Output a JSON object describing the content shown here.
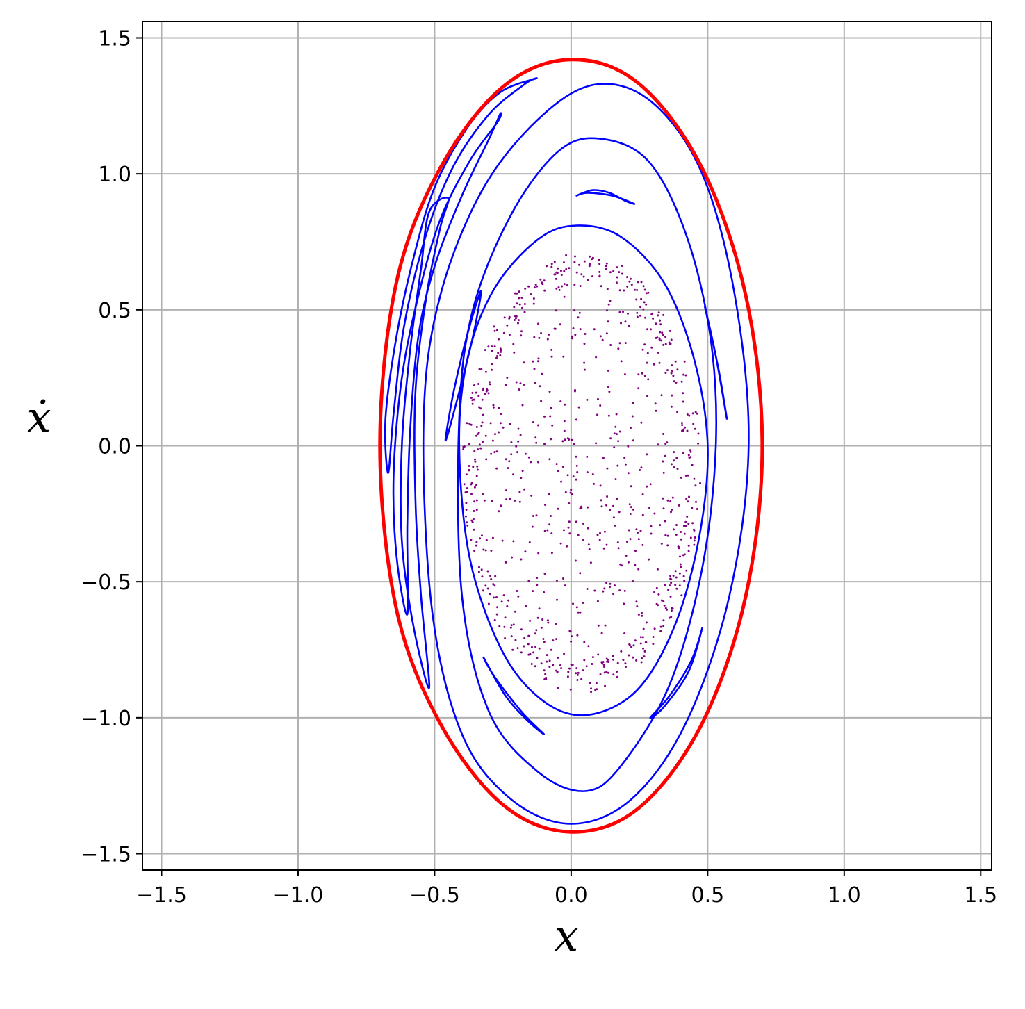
{
  "chart_data": {
    "type": "scatter",
    "title": "",
    "xlabel": "x",
    "ylabel": "ẋ",
    "xlim": [
      -1.57,
      1.54
    ],
    "ylim": [
      -1.56,
      1.56
    ],
    "xticks": [
      -1.5,
      -1.0,
      -0.5,
      0.0,
      0.5,
      1.0,
      1.5
    ],
    "xtick_labels": [
      "−1.5",
      "−1.0",
      "−0.5",
      "0.0",
      "0.5",
      "1.0",
      "1.5"
    ],
    "yticks": [
      -1.5,
      -1.0,
      -0.5,
      0.0,
      0.5,
      1.0,
      1.5
    ],
    "ytick_labels": [
      "−1.5",
      "−1.0",
      "−0.5",
      "0.0",
      "0.5",
      "1.0",
      "1.5"
    ],
    "grid": true,
    "legend": "none",
    "colors": {
      "boundary": "#ff0000",
      "orbits": "#0000ff",
      "chaotic": "#800080",
      "grid": "#b0b0b0"
    },
    "series": [
      {
        "kind": "boundary-ellipse",
        "color": "#ff0000",
        "points": [
          [
            -0.7,
            0.0
          ],
          [
            -0.64,
            0.6
          ],
          [
            -0.48,
            1.02
          ],
          [
            -0.25,
            1.32
          ],
          [
            0.0,
            1.42
          ],
          [
            0.25,
            1.33
          ],
          [
            0.48,
            1.02
          ],
          [
            0.64,
            0.55
          ],
          [
            0.7,
            0.0
          ],
          [
            0.64,
            -0.55
          ],
          [
            0.48,
            -1.02
          ],
          [
            0.25,
            -1.33
          ],
          [
            0.0,
            -1.42
          ],
          [
            -0.25,
            -1.32
          ],
          [
            -0.48,
            -1.02
          ],
          [
            -0.64,
            -0.6
          ],
          [
            -0.7,
            0.0
          ]
        ]
      },
      {
        "kind": "closed-orbit",
        "color": "#0000ff",
        "points": [
          [
            -0.54,
            0.1
          ],
          [
            -0.48,
            0.55
          ],
          [
            -0.32,
            0.95
          ],
          [
            -0.1,
            1.22
          ],
          [
            0.1,
            1.33
          ],
          [
            0.3,
            1.26
          ],
          [
            0.48,
            1.0
          ],
          [
            0.6,
            0.55
          ],
          [
            0.65,
            0.0
          ],
          [
            0.58,
            -0.55
          ],
          [
            0.42,
            -1.02
          ],
          [
            0.22,
            -1.3
          ],
          [
            0.0,
            -1.39
          ],
          [
            -0.22,
            -1.3
          ],
          [
            -0.4,
            -1.06
          ],
          [
            -0.51,
            -0.6
          ],
          [
            -0.54,
            0.1
          ]
        ]
      },
      {
        "kind": "closed-orbit",
        "color": "#0000ff",
        "points": [
          [
            -0.41,
            0.1
          ],
          [
            -0.36,
            0.5
          ],
          [
            -0.22,
            0.85
          ],
          [
            -0.05,
            1.08
          ],
          [
            0.1,
            1.13
          ],
          [
            0.28,
            1.05
          ],
          [
            0.42,
            0.78
          ],
          [
            0.51,
            0.4
          ],
          [
            0.53,
            0.0
          ],
          [
            0.48,
            -0.45
          ],
          [
            0.36,
            -0.88
          ],
          [
            0.18,
            -1.18
          ],
          [
            0.05,
            -1.27
          ],
          [
            -0.12,
            -1.2
          ],
          [
            -0.3,
            -0.98
          ],
          [
            -0.4,
            -0.55
          ],
          [
            -0.41,
            0.1
          ]
        ]
      },
      {
        "kind": "closed-orbit",
        "color": "#0000ff",
        "points": [
          [
            -0.41,
            0.0
          ],
          [
            -0.38,
            0.32
          ],
          [
            -0.28,
            0.58
          ],
          [
            -0.12,
            0.76
          ],
          [
            0.02,
            0.81
          ],
          [
            0.18,
            0.77
          ],
          [
            0.34,
            0.6
          ],
          [
            0.45,
            0.32
          ],
          [
            0.5,
            0.0
          ],
          [
            0.47,
            -0.33
          ],
          [
            0.38,
            -0.66
          ],
          [
            0.24,
            -0.9
          ],
          [
            0.06,
            -0.99
          ],
          [
            -0.1,
            -0.94
          ],
          [
            -0.25,
            -0.76
          ],
          [
            -0.37,
            -0.42
          ],
          [
            -0.41,
            0.0
          ]
        ]
      },
      {
        "kind": "island",
        "color": "#0000ff",
        "points": [
          [
            -0.46,
            0.02
          ],
          [
            -0.43,
            0.2
          ],
          [
            -0.38,
            0.41
          ],
          [
            -0.33,
            0.57
          ],
          [
            -0.36,
            0.4
          ],
          [
            -0.42,
            0.16
          ],
          [
            -0.46,
            0.02
          ]
        ]
      },
      {
        "kind": "island",
        "color": "#0000ff",
        "points": [
          [
            0.02,
            0.92
          ],
          [
            0.08,
            0.94
          ],
          [
            0.14,
            0.93
          ],
          [
            0.2,
            0.9
          ],
          [
            0.23,
            0.89
          ],
          [
            0.15,
            0.92
          ],
          [
            0.06,
            0.93
          ],
          [
            0.02,
            0.92
          ]
        ]
      },
      {
        "kind": "island",
        "color": "#0000ff",
        "points": [
          [
            0.49,
            0.51
          ],
          [
            0.53,
            0.33
          ],
          [
            0.57,
            0.1
          ],
          [
            0.54,
            0.28
          ],
          [
            0.49,
            0.51
          ]
        ]
      },
      {
        "kind": "island",
        "color": "#0000ff",
        "points": [
          [
            -0.32,
            -0.78
          ],
          [
            -0.24,
            -0.92
          ],
          [
            -0.16,
            -1.01
          ],
          [
            -0.1,
            -1.06
          ],
          [
            -0.18,
            -0.98
          ],
          [
            -0.28,
            -0.85
          ],
          [
            -0.32,
            -0.78
          ]
        ]
      },
      {
        "kind": "island",
        "color": "#0000ff",
        "points": [
          [
            0.29,
            -1.0
          ],
          [
            0.36,
            -0.92
          ],
          [
            0.44,
            -0.79
          ],
          [
            0.48,
            -0.67
          ],
          [
            0.43,
            -0.83
          ],
          [
            0.34,
            -0.96
          ],
          [
            0.29,
            -1.0
          ]
        ]
      },
      {
        "kind": "tendril",
        "color": "#0000ff",
        "points": [
          [
            -0.67,
            -0.1
          ],
          [
            -0.68,
            0.1
          ],
          [
            -0.64,
            0.4
          ],
          [
            -0.58,
            0.68
          ],
          [
            -0.5,
            0.95
          ],
          [
            -0.38,
            1.17
          ],
          [
            -0.26,
            1.3
          ],
          [
            -0.13,
            1.35
          ],
          [
            -0.17,
            1.33
          ],
          [
            -0.3,
            1.22
          ],
          [
            -0.43,
            1.03
          ],
          [
            -0.53,
            0.78
          ],
          [
            -0.61,
            0.45
          ],
          [
            -0.65,
            0.12
          ],
          [
            -0.67,
            -0.1
          ]
        ]
      },
      {
        "kind": "tendril",
        "color": "#0000ff",
        "points": [
          [
            -0.6,
            -0.62
          ],
          [
            -0.64,
            -0.4
          ],
          [
            -0.65,
            -0.1
          ],
          [
            -0.62,
            0.25
          ],
          [
            -0.56,
            0.55
          ],
          [
            -0.48,
            0.83
          ],
          [
            -0.37,
            1.05
          ],
          [
            -0.27,
            1.19
          ],
          [
            -0.26,
            1.22
          ],
          [
            -0.3,
            1.13
          ],
          [
            -0.4,
            0.92
          ],
          [
            -0.5,
            0.66
          ],
          [
            -0.56,
            0.4
          ],
          [
            -0.59,
            0.05
          ],
          [
            -0.6,
            -0.3
          ],
          [
            -0.6,
            -0.62
          ]
        ]
      },
      {
        "kind": "tendril",
        "color": "#0000ff",
        "points": [
          [
            -0.52,
            -0.89
          ],
          [
            -0.58,
            -0.65
          ],
          [
            -0.62,
            -0.35
          ],
          [
            -0.62,
            0.0
          ],
          [
            -0.59,
            0.35
          ],
          [
            -0.55,
            0.65
          ],
          [
            -0.52,
            0.86
          ],
          [
            -0.45,
            0.91
          ],
          [
            -0.48,
            0.8
          ],
          [
            -0.53,
            0.55
          ],
          [
            -0.57,
            0.2
          ],
          [
            -0.57,
            -0.2
          ],
          [
            -0.55,
            -0.55
          ],
          [
            -0.52,
            -0.89
          ]
        ]
      },
      {
        "kind": "chaotic-region",
        "color": "#800080",
        "count": 900,
        "center": [
          0.04,
          -0.1
        ],
        "radii": [
          0.44,
          0.81
        ]
      }
    ]
  }
}
